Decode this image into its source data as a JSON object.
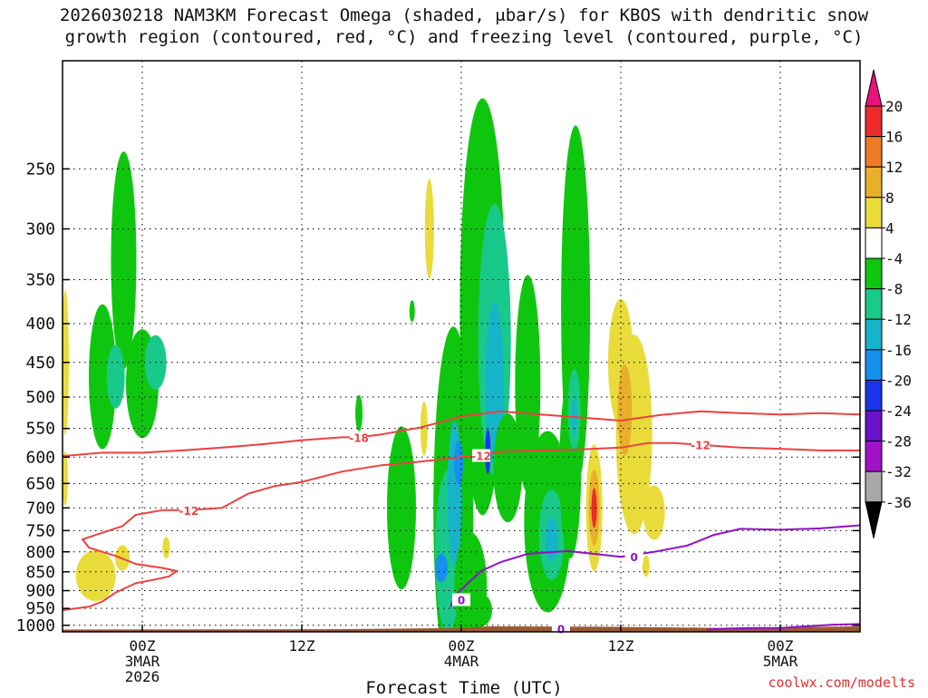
{
  "header": {
    "title_line1": "2026030218 NAM3KM Forecast Omega (shaded, μbar/s) for KBOS with dendritic snow",
    "title_line2": "growth region (contoured, red, °C) and freezing level (contoured, purple, °C)"
  },
  "footer": {
    "credit": "coolwx.com/modelts"
  },
  "chart_data": {
    "type": "time-height cross section (filled contour)",
    "title": "2026030218 NAM3KM Forecast Omega (shaded, μbar/s) for KBOS with dendritic snow growth region (contoured, red, °C) and freezing level (contoured, purple, °C)",
    "xlabel": "Forecast Time (UTC)",
    "ylabel": "",
    "xlim_hours_from_init": [
      0,
      60
    ],
    "ylim_hPa": [
      1020,
      180
    ],
    "x_ticks": [
      {
        "hour": 6,
        "label": "00Z",
        "sub1": "3MAR",
        "sub2": "2026"
      },
      {
        "hour": 18,
        "label": "12Z",
        "sub1": "",
        "sub2": ""
      },
      {
        "hour": 30,
        "label": "00Z",
        "sub1": "4MAR",
        "sub2": ""
      },
      {
        "hour": 42,
        "label": "12Z",
        "sub1": "",
        "sub2": ""
      },
      {
        "hour": 54,
        "label": "00Z",
        "sub1": "5MAR",
        "sub2": ""
      }
    ],
    "y_ticks": [
      250,
      300,
      350,
      400,
      450,
      500,
      550,
      600,
      650,
      700,
      750,
      800,
      850,
      900,
      950,
      1000
    ],
    "grid": true,
    "colorbar": {
      "labels": [
        "20",
        "16",
        "12",
        "8",
        "4",
        "-4",
        "-8",
        "-12",
        "-16",
        "-20",
        "-24",
        "-28",
        "-32",
        "-36"
      ],
      "bins": [
        {
          "color": "#e8127a",
          "label": ">20"
        },
        {
          "color": "#ee2b2b",
          "label": "16 to 20"
        },
        {
          "color": "#ef7a24",
          "label": "12 to 16"
        },
        {
          "color": "#e8b02a",
          "label": "8 to 12"
        },
        {
          "color": "#e9dc3a",
          "label": "4 to 8"
        },
        {
          "color": "#ffffff",
          "label": "-4 to 4"
        },
        {
          "color": "#0fc60f",
          "label": "-8 to -4"
        },
        {
          "color": "#18c98a",
          "label": "-12 to -8"
        },
        {
          "color": "#16b4c8",
          "label": "-16 to -12"
        },
        {
          "color": "#1690ee",
          "label": "-20 to -16"
        },
        {
          "color": "#1a35e8",
          "label": "-24 to -20"
        },
        {
          "color": "#6a12c8",
          "label": "-28 to -24"
        },
        {
          "color": "#a012c8",
          "label": "-32 to -28"
        },
        {
          "color": "#a8a8a8",
          "label": "-36 to -32"
        },
        {
          "color": "#000000",
          "label": "<-36"
        }
      ]
    },
    "contours": [
      {
        "name": "-18C isotherm",
        "color": "#ee4040",
        "label": "-18",
        "label_at": {
          "hour": 22.3,
          "p": 565
        },
        "points": [
          [
            0,
            598
          ],
          [
            3,
            592
          ],
          [
            6,
            592
          ],
          [
            9,
            588
          ],
          [
            12,
            583
          ],
          [
            15,
            577
          ],
          [
            18,
            570
          ],
          [
            21,
            565
          ],
          [
            22.3,
            565
          ],
          [
            24,
            560
          ],
          [
            27,
            548
          ],
          [
            30,
            530
          ],
          [
            33,
            522
          ],
          [
            36,
            527
          ],
          [
            39,
            532
          ],
          [
            42,
            537
          ],
          [
            45,
            528
          ],
          [
            48,
            522
          ],
          [
            51,
            525
          ],
          [
            54,
            527
          ],
          [
            57,
            525
          ],
          [
            60,
            527
          ]
        ]
      },
      {
        "name": "-12C isotherm",
        "color": "#ee4040",
        "label": "-12",
        "label_at": {
          "hour": 9.5,
          "p": 705
        },
        "extra_labels": [
          {
            "hour": 31.5,
            "p": 597
          },
          {
            "hour": 48,
            "p": 578
          }
        ],
        "points": [
          [
            0,
            955
          ],
          [
            2,
            945
          ],
          [
            3,
            930
          ],
          [
            4,
            905
          ],
          [
            5.5,
            880
          ],
          [
            7,
            870
          ],
          [
            8,
            862
          ],
          [
            8.6,
            848
          ],
          [
            7.5,
            840
          ],
          [
            5.5,
            830
          ],
          [
            4,
            810
          ],
          [
            2,
            790
          ],
          [
            1.5,
            770
          ],
          [
            3,
            755
          ],
          [
            4.5,
            740
          ],
          [
            5.5,
            715
          ],
          [
            7.5,
            705
          ],
          [
            9.5,
            705
          ],
          [
            12,
            700
          ],
          [
            14,
            670
          ],
          [
            16,
            655
          ],
          [
            18,
            647
          ],
          [
            21,
            627
          ],
          [
            24,
            615
          ],
          [
            27,
            608
          ],
          [
            30,
            600
          ],
          [
            33,
            590
          ],
          [
            36,
            588
          ],
          [
            39,
            586
          ],
          [
            42,
            583
          ],
          [
            44,
            575
          ],
          [
            46,
            575
          ],
          [
            48,
            578
          ],
          [
            51,
            583
          ],
          [
            54,
            585
          ],
          [
            57,
            588
          ],
          [
            60,
            588
          ]
        ]
      },
      {
        "name": "0C freezing level",
        "color": "#9010c8",
        "label": "0",
        "label_at": {
          "hour": 43,
          "p": 812
        },
        "extra_labels": [
          {
            "hour": 30,
            "p": 925
          },
          {
            "hour": 37.5,
            "p": 1010
          }
        ],
        "points": [
          [
            29.2,
            945
          ],
          [
            29.5,
            915
          ],
          [
            30.5,
            880
          ],
          [
            31.5,
            848
          ],
          [
            33,
            825
          ],
          [
            35,
            805
          ],
          [
            38,
            798
          ],
          [
            40,
            805
          ],
          [
            42,
            812
          ],
          [
            44.5,
            800
          ],
          [
            47,
            785
          ],
          [
            49,
            760
          ],
          [
            51,
            746
          ],
          [
            54,
            748
          ],
          [
            57,
            745
          ],
          [
            60,
            738
          ]
        ]
      },
      {
        "name": "0C near-surface",
        "color": "#9010c8",
        "points": [
          [
            48.5,
            1013
          ],
          [
            50,
            1010
          ],
          [
            52,
            1008
          ],
          [
            54,
            1008
          ],
          [
            56,
            1003
          ],
          [
            58,
            998
          ],
          [
            60,
            996
          ]
        ]
      }
    ]
  }
}
